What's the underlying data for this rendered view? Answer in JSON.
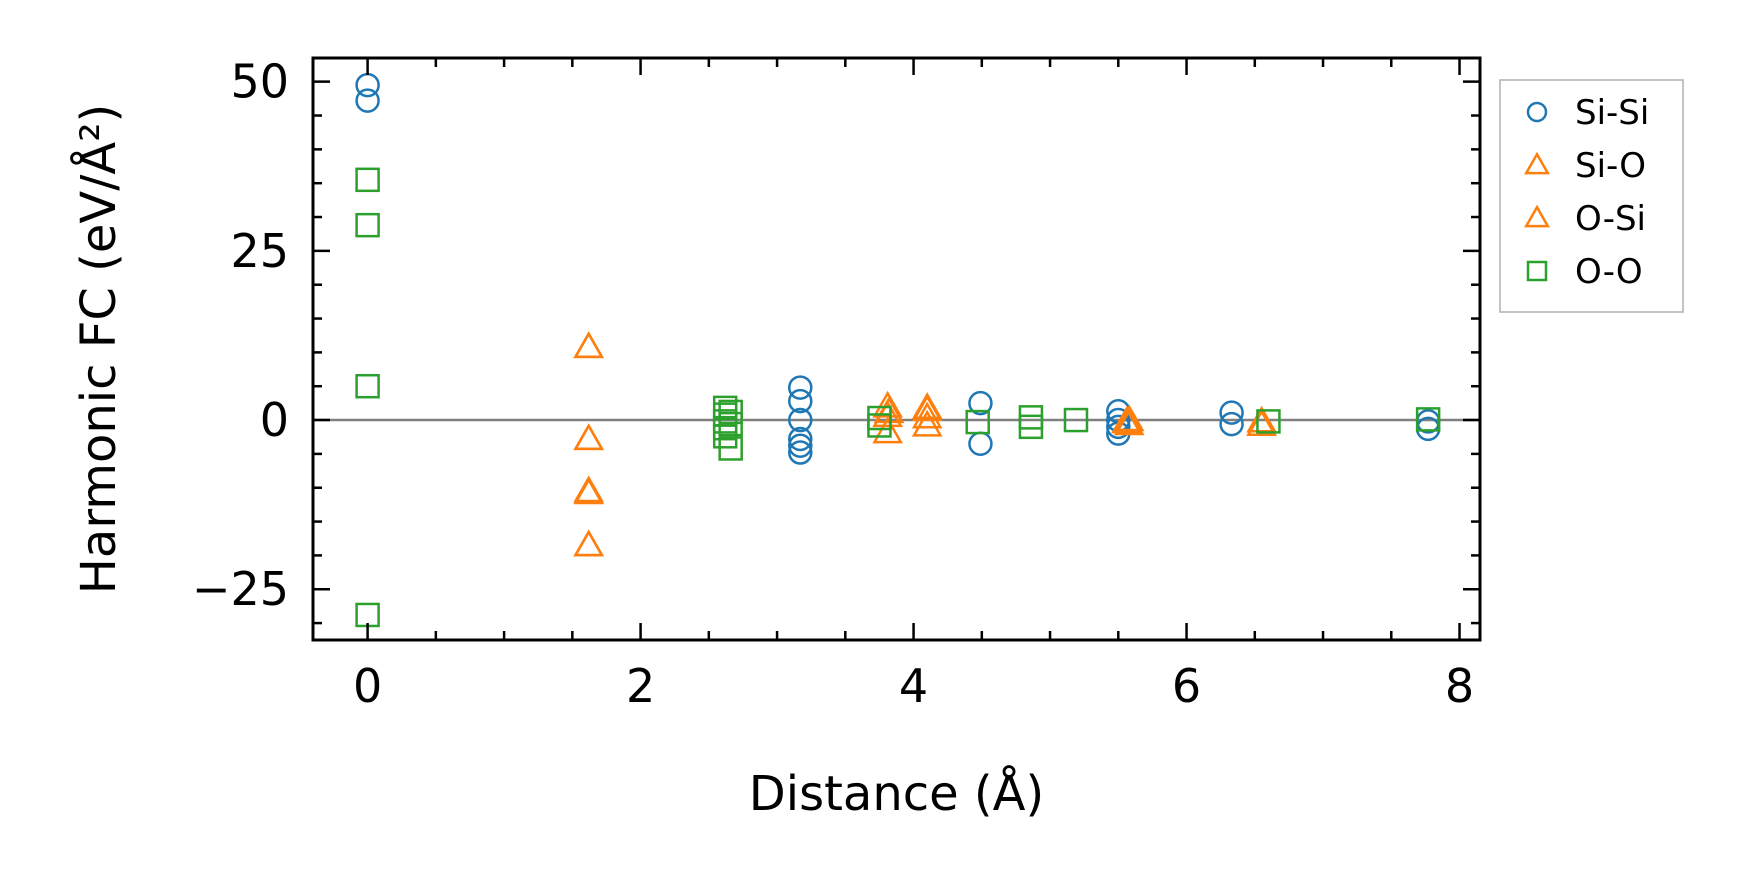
{
  "chart_data": {
    "type": "scatter",
    "title": "",
    "xlabel": "Distance (Å)",
    "ylabel": "Harmonic FC (eV/Å²)",
    "xlim": [
      -0.4,
      8.15
    ],
    "ylim": [
      -32.5,
      53.5
    ],
    "xticks": [
      0,
      2,
      4,
      6,
      8
    ],
    "xtick_labels": [
      "0",
      "2",
      "4",
      "6",
      "8"
    ],
    "yticks": [
      -25,
      0,
      25,
      50
    ],
    "ytick_labels": [
      "−25",
      "0",
      "25",
      "50"
    ],
    "zero_line": true,
    "grid": false,
    "legend_position": "outside-top-right",
    "series": [
      {
        "name": "Si-Si",
        "marker": "circle",
        "color": "#1f77b4",
        "points": [
          [
            0,
            49.5
          ],
          [
            0,
            47.2
          ],
          [
            3.17,
            4.8
          ],
          [
            3.17,
            2.8
          ],
          [
            3.17,
            0
          ],
          [
            3.17,
            -2.8
          ],
          [
            3.17,
            -3.8
          ],
          [
            3.17,
            -4.8
          ],
          [
            4.49,
            2.5
          ],
          [
            4.49,
            -3.5
          ],
          [
            5.5,
            1.3
          ],
          [
            5.5,
            0
          ],
          [
            5.5,
            -1.0
          ],
          [
            5.5,
            -2.0
          ],
          [
            6.33,
            1.1
          ],
          [
            6.33,
            -0.6
          ],
          [
            7.77,
            -0.2
          ],
          [
            7.77,
            -1.3
          ]
        ]
      },
      {
        "name": "Si-O",
        "marker": "triangle",
        "color": "#ff7f0e",
        "points": [
          [
            1.62,
            10.8
          ],
          [
            1.62,
            -2.8
          ],
          [
            1.62,
            -10.8
          ],
          [
            1.62,
            -18.5
          ],
          [
            3.81,
            2.0
          ],
          [
            3.81,
            0.6
          ],
          [
            3.81,
            -1.8
          ],
          [
            4.1,
            1.8
          ],
          [
            4.1,
            0.4
          ],
          [
            4.1,
            -0.8
          ],
          [
            5.58,
            0
          ],
          [
            5.58,
            -0.6
          ],
          [
            6.55,
            -0.2
          ],
          [
            6.55,
            -0.7
          ]
        ]
      },
      {
        "name": "O-Si",
        "marker": "triangle",
        "color": "#ff7f0e",
        "points": [
          [
            1.62,
            10.8
          ],
          [
            1.62,
            -2.8
          ],
          [
            1.62,
            -10.5
          ],
          [
            1.62,
            -18.5
          ],
          [
            3.82,
            1.2
          ],
          [
            4.1,
            1.5
          ],
          [
            5.56,
            -0.3
          ]
        ]
      },
      {
        "name": "O-O",
        "marker": "square",
        "color": "#2ca02c",
        "points": [
          [
            0,
            35.5
          ],
          [
            0,
            28.8
          ],
          [
            0,
            5.0
          ],
          [
            0,
            -28.8
          ],
          [
            2.62,
            1.8
          ],
          [
            2.62,
            0.8
          ],
          [
            2.62,
            -0.2
          ],
          [
            2.62,
            -1.2
          ],
          [
            2.62,
            -2.4
          ],
          [
            2.66,
            1.2
          ],
          [
            2.66,
            -0.6
          ],
          [
            2.66,
            -4.2
          ],
          [
            3.75,
            0.3
          ],
          [
            3.75,
            -0.8
          ],
          [
            4.47,
            -0.3
          ],
          [
            4.86,
            0.4
          ],
          [
            4.86,
            -1.0
          ],
          [
            5.19,
            0
          ],
          [
            6.6,
            -0.2
          ],
          [
            7.77,
            0.1
          ]
        ]
      }
    ]
  }
}
